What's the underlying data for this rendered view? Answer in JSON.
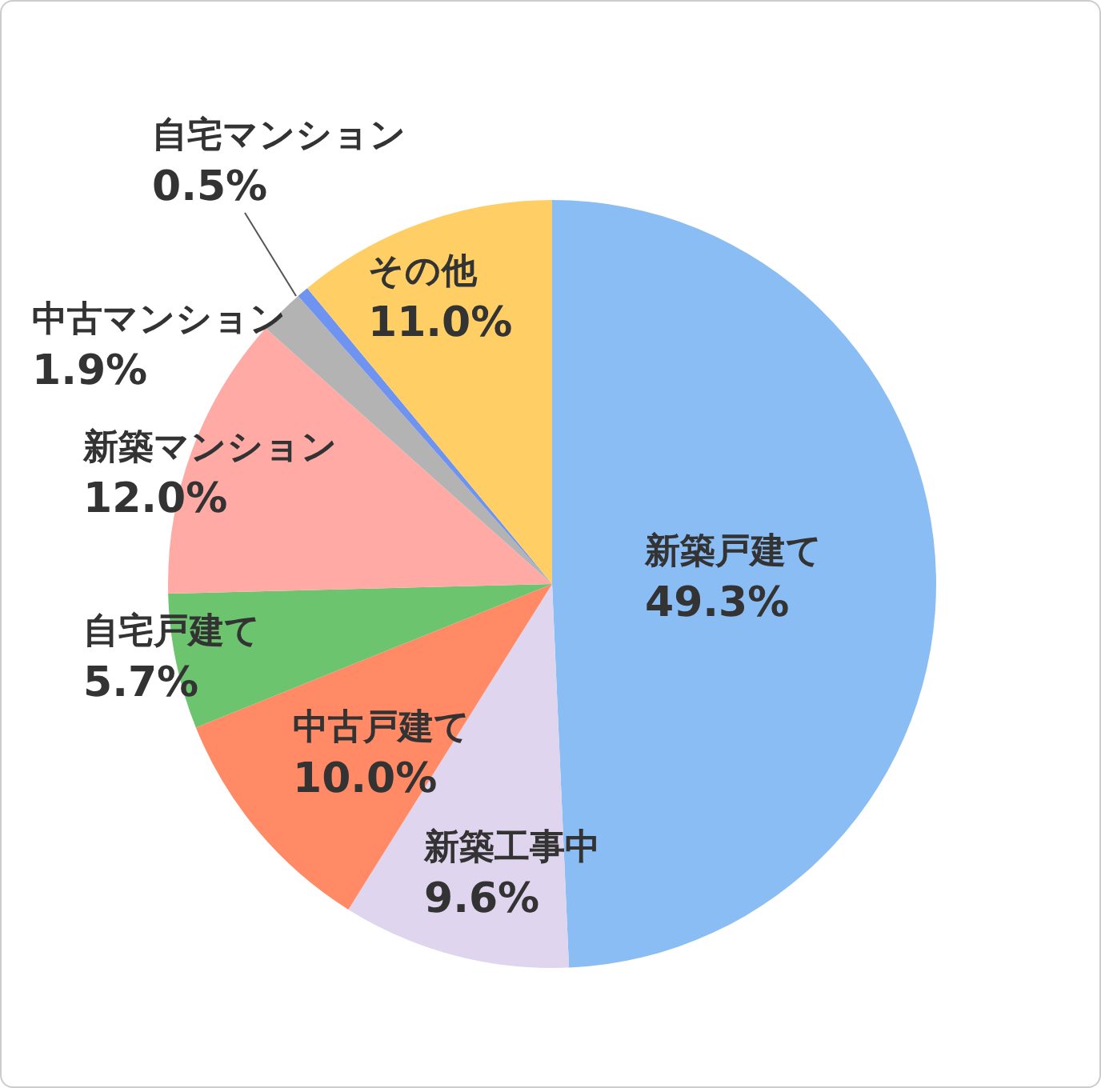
{
  "chart_data": {
    "type": "pie",
    "categories": [
      "新築戸建て",
      "新築工事中",
      "中古戸建て",
      "自宅戸建て",
      "新築マンション",
      "中古マンション",
      "自宅マンション",
      "その他"
    ],
    "values": [
      49.3,
      9.6,
      10.0,
      5.7,
      12.0,
      1.9,
      0.5,
      11.0
    ],
    "colors": [
      "#8bbdf5",
      "#e0d5ee",
      "#ff8a65",
      "#6cc56e",
      "#ffaaa5",
      "#b3b3b3",
      "#6e93f0",
      "#ffcf66"
    ],
    "value_labels": [
      "49.3%",
      "9.6%",
      "10.0%",
      "5.7%",
      "12.0%",
      "1.9%",
      "0.5%",
      "11.0%"
    ],
    "legend": false
  }
}
